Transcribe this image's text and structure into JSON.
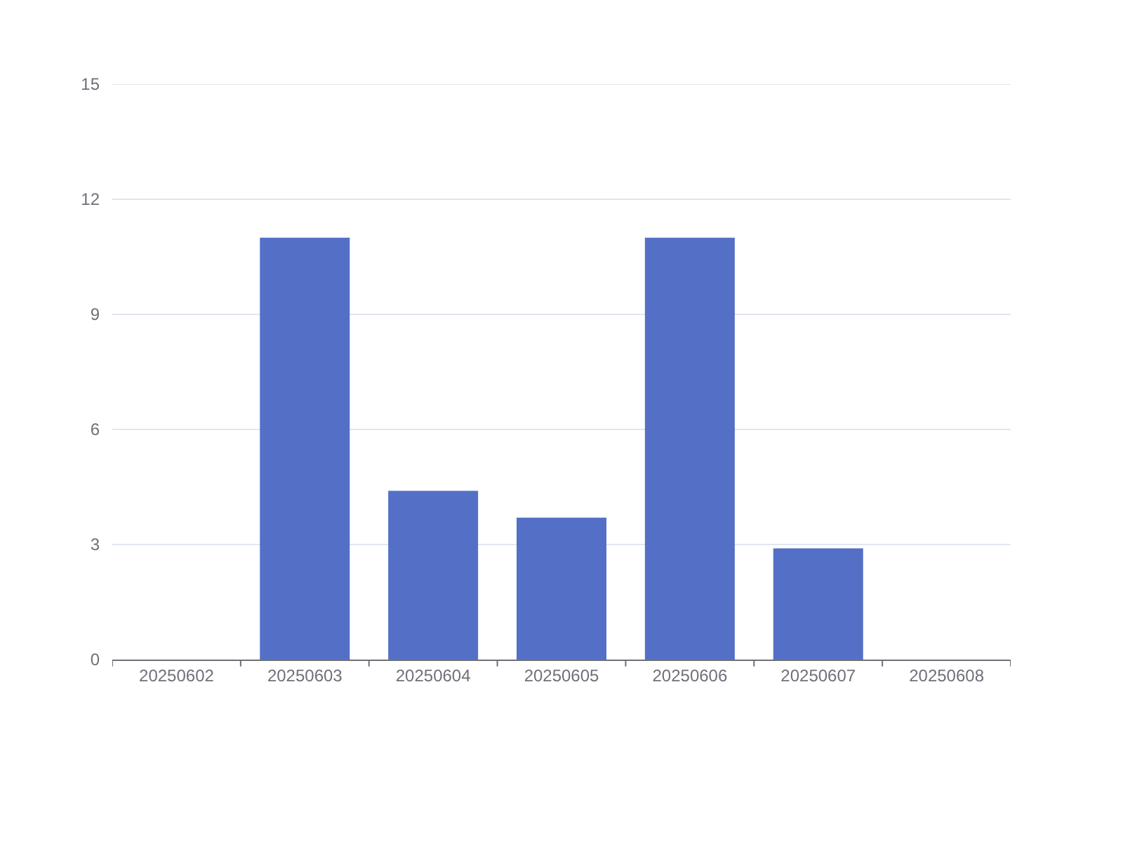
{
  "chart_data": {
    "type": "bar",
    "categories": [
      "20250602",
      "20250603",
      "20250604",
      "20250605",
      "20250606",
      "20250607",
      "20250608"
    ],
    "values": [
      0,
      11,
      4.4,
      3.7,
      11,
      2.9,
      0
    ],
    "color": "#5470c6",
    "ylim": [
      0,
      15
    ],
    "yticks": [
      0,
      3,
      6,
      9,
      12,
      15
    ],
    "grid": "y"
  }
}
